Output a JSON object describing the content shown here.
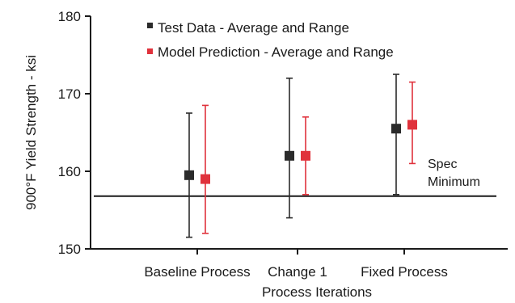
{
  "chart_data": {
    "type": "errorbar",
    "ylabel": "900°F Yield Strength - ksi",
    "xlabel": "Process Iterations",
    "ylim": [
      150,
      180
    ],
    "yticks": [
      150,
      160,
      170,
      180
    ],
    "categories": [
      "Baseline Process",
      "Change 1",
      "Fixed Process"
    ],
    "series": [
      {
        "name": "Test Data - Average and Range",
        "color": "#2b2b2b",
        "mean": [
          159.5,
          162.0,
          165.5
        ],
        "min": [
          151.5,
          154.0,
          157.0
        ],
        "max": [
          167.5,
          172.0,
          172.5
        ]
      },
      {
        "name": "Model Prediction - Average and Range",
        "color": "#e0323c",
        "mean": [
          159.0,
          162.0,
          166.0
        ],
        "min": [
          152.0,
          157.0,
          161.0
        ],
        "max": [
          168.5,
          167.0,
          171.5
        ]
      }
    ],
    "reference_line": {
      "value": 156.8,
      "label_line1": "Spec",
      "label_line2": "Minimum"
    },
    "legend_placement": "top"
  }
}
